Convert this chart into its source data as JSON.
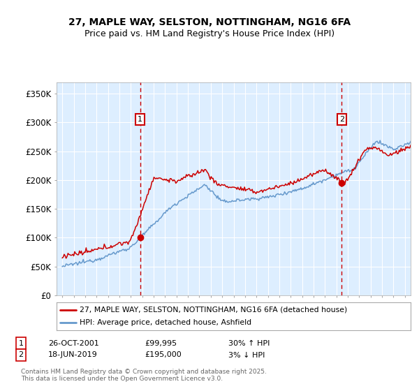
{
  "title_line1": "27, MAPLE WAY, SELSTON, NOTTINGHAM, NG16 6FA",
  "title_line2": "Price paid vs. HM Land Registry's House Price Index (HPI)",
  "ylabel_ticks": [
    "£0",
    "£50K",
    "£100K",
    "£150K",
    "£200K",
    "£250K",
    "£300K",
    "£350K"
  ],
  "ytick_values": [
    0,
    50000,
    100000,
    150000,
    200000,
    250000,
    300000,
    350000
  ],
  "ylim": [
    0,
    370000
  ],
  "legend_line1": "27, MAPLE WAY, SELSTON, NOTTINGHAM, NG16 6FA (detached house)",
  "legend_line2": "HPI: Average price, detached house, Ashfield",
  "sale1_date": "26-OCT-2001",
  "sale1_price": "£99,995",
  "sale1_hpi": "30% ↑ HPI",
  "sale1_x": 2001.82,
  "sale1_y": 99995,
  "sale2_date": "18-JUN-2019",
  "sale2_price": "£195,000",
  "sale2_hpi": "3% ↓ HPI",
  "sale2_x": 2019.47,
  "sale2_y": 195000,
  "red_color": "#cc0000",
  "blue_color": "#6699cc",
  "background_color": "#ddeeff",
  "footer_text": "Contains HM Land Registry data © Crown copyright and database right 2025.\nThis data is licensed under the Open Government Licence v3.0.",
  "xmin": 1994.5,
  "xmax": 2025.5
}
